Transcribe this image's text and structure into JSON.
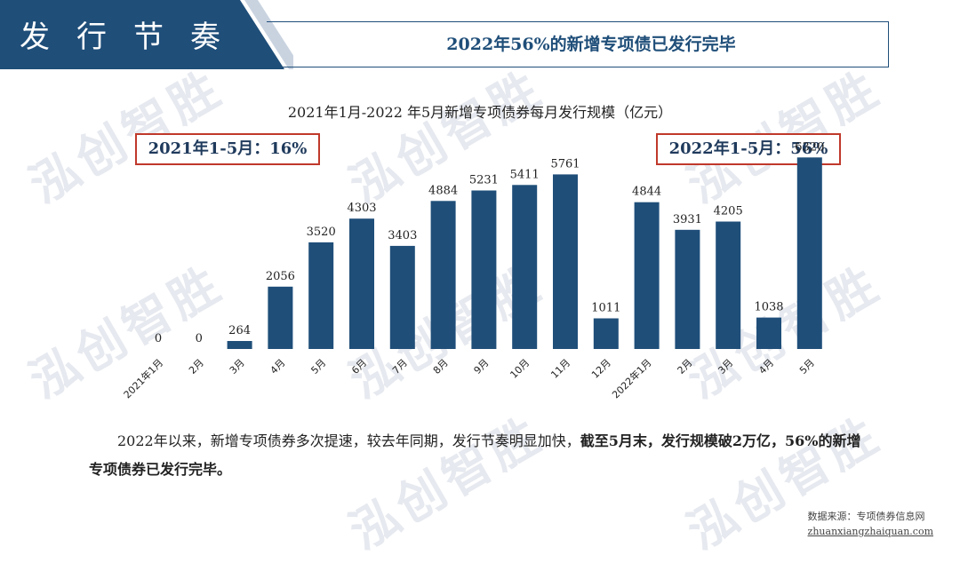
{
  "header": {
    "section_title": "发行节奏",
    "subtitle": "2022年56%的新增专项债已发行完毕"
  },
  "watermark": "泓创智胜",
  "callouts": {
    "left": "2021年1-5月：16%",
    "right": "2022年1-5月：56%"
  },
  "summary": {
    "normal": "2022年以来，新增专项债券多次提速，较去年同期，发行节奏明显加快，",
    "bold": "截至5月末，发行规模破2万亿，56%的新增专项债券已发行完毕。"
  },
  "source": {
    "label": "数据来源：专项债券信息网",
    "url": "zhuanxiangzhaiquan.com"
  },
  "colors": {
    "bar": "#1f4e79",
    "header": "#1f4e79",
    "callout_border": "#c0392b"
  },
  "chart_data": {
    "type": "bar",
    "title": "2021年1月-2022 年5月新增专项债券每月发行规模（亿元）",
    "categories": [
      "2021年1月",
      "2月",
      "3月",
      "4月",
      "5月",
      "6月",
      "7月",
      "8月",
      "9月",
      "10月",
      "11月",
      "12月",
      "2022年1月",
      "2月",
      "3月",
      "4月",
      "5月"
    ],
    "values": [
      0,
      0,
      264,
      2056,
      3520,
      4303,
      3403,
      4884,
      5231,
      5411,
      5761,
      1011,
      4844,
      3931,
      4205,
      1038,
      6320
    ],
    "ylim": [
      0,
      7000
    ],
    "grid": false
  }
}
